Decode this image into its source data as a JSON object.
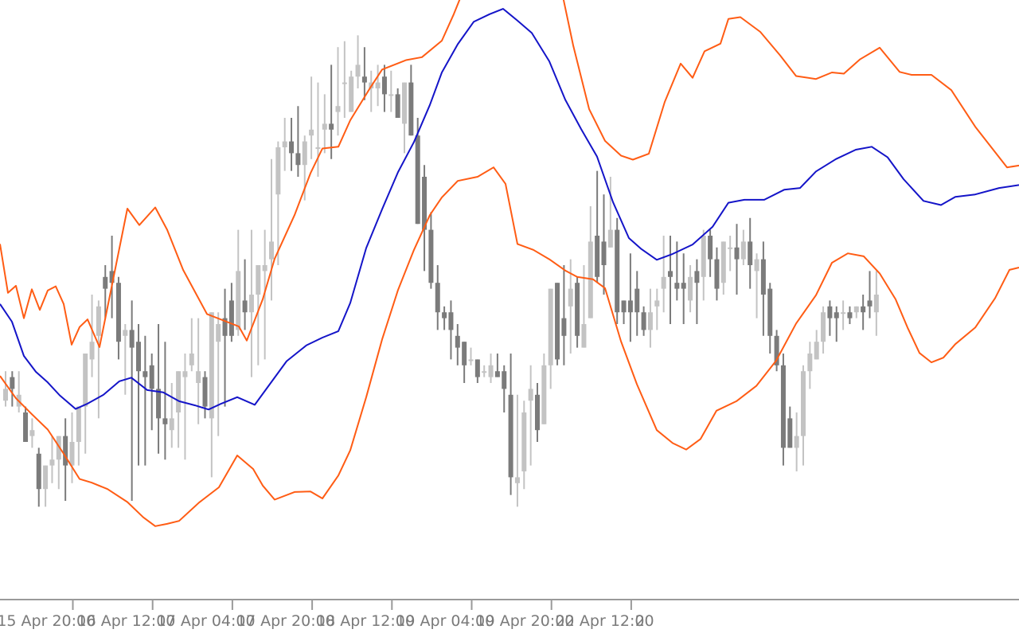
{
  "chart_data": {
    "type": "candlestick",
    "title": "",
    "xlabel": "",
    "ylabel": "",
    "ylim": [
      0,
      100
    ],
    "grid": false,
    "legend": "none",
    "x_ticks": [
      {
        "label": "15 Apr 20:00",
        "index": -2
      },
      {
        "label": "16 Apr 12:00",
        "index": 10
      },
      {
        "label": "17 Apr 04:00",
        "index": 22
      },
      {
        "label": "17 Apr 20:00",
        "index": 34
      },
      {
        "label": "18 Apr 12:00",
        "index": 46
      },
      {
        "label": "19 Apr 04:00",
        "index": 58
      },
      {
        "label": "19 Apr 20:00",
        "index": 70
      },
      {
        "label": "22 Apr 12:00",
        "index": 82
      },
      {
        "label": "2",
        "index": 94
      }
    ],
    "candles": [
      [
        32,
        34,
        37,
        31
      ],
      [
        36,
        34,
        37,
        31
      ],
      [
        31,
        33,
        37,
        30
      ],
      [
        30,
        25,
        31,
        25
      ],
      [
        26,
        27,
        29,
        24
      ],
      [
        23,
        17,
        24,
        14
      ],
      [
        17,
        21,
        21,
        14
      ],
      [
        21,
        22,
        26,
        18
      ],
      [
        22,
        26,
        26,
        17
      ],
      [
        26,
        21,
        29,
        15
      ],
      [
        21,
        25,
        30,
        18
      ],
      [
        25,
        31,
        31,
        21
      ],
      [
        31,
        40,
        40,
        23
      ],
      [
        39,
        42,
        50,
        36
      ],
      [
        43,
        48,
        49,
        29
      ],
      [
        53,
        51,
        55,
        46
      ],
      [
        54,
        52,
        60,
        46
      ],
      [
        52,
        42,
        53,
        39
      ],
      [
        43,
        44,
        45,
        33
      ],
      [
        44,
        41,
        49,
        15
      ],
      [
        42,
        37,
        45,
        21
      ],
      [
        37,
        36,
        43,
        21
      ],
      [
        38,
        34,
        40,
        27
      ],
      [
        34,
        29,
        45,
        23
      ],
      [
        29,
        28,
        42,
        22
      ],
      [
        27,
        29,
        35,
        24
      ],
      [
        30,
        37,
        37,
        24
      ],
      [
        36,
        37,
        40,
        22
      ],
      [
        38,
        40,
        46,
        37
      ],
      [
        35,
        37,
        46,
        28
      ],
      [
        36,
        31,
        37,
        29
      ],
      [
        29,
        47,
        47,
        19
      ],
      [
        42,
        45,
        47,
        26
      ],
      [
        46,
        43,
        51,
        31
      ],
      [
        49,
        43,
        52,
        42
      ],
      [
        44,
        54,
        61,
        43
      ],
      [
        49,
        47,
        56,
        44
      ],
      [
        47,
        50,
        61,
        36
      ],
      [
        50,
        55,
        55,
        38
      ],
      [
        54,
        55,
        61,
        39
      ],
      [
        56,
        59,
        73,
        49
      ],
      [
        67,
        75,
        76,
        55
      ],
      [
        75,
        76,
        80,
        71
      ],
      [
        76,
        74,
        80,
        71
      ],
      [
        74,
        72,
        82,
        70
      ],
      [
        72,
        76,
        77,
        66
      ],
      [
        77,
        78,
        87,
        73
      ],
      [
        75,
        75,
        86,
        70
      ],
      [
        78,
        79,
        84,
        74
      ],
      [
        79,
        78,
        89,
        73
      ],
      [
        81,
        82,
        92,
        77
      ],
      [
        86,
        86,
        93,
        80
      ],
      [
        81,
        87,
        88,
        81
      ],
      [
        87,
        89,
        94,
        85
      ],
      [
        87,
        86,
        92,
        83
      ],
      [
        85,
        86,
        88,
        81
      ],
      [
        85,
        86,
        89,
        82
      ],
      [
        87,
        84,
        89,
        81
      ],
      [
        84,
        84,
        88,
        81
      ],
      [
        84,
        80,
        85,
        82
      ],
      [
        79,
        86,
        85,
        74
      ],
      [
        86,
        77,
        89,
        79
      ],
      [
        77,
        62,
        80,
        63
      ],
      [
        70,
        61,
        72,
        54
      ],
      [
        61,
        52,
        64,
        51
      ],
      [
        52,
        47,
        55,
        44
      ],
      [
        47,
        46,
        48,
        44
      ],
      [
        47,
        44,
        49,
        39
      ],
      [
        43,
        41,
        45,
        38
      ],
      [
        42,
        38,
        42,
        35
      ],
      [
        39,
        39,
        41,
        38
      ],
      [
        39,
        36,
        39,
        35
      ],
      [
        37,
        37,
        38,
        36
      ],
      [
        36,
        38,
        40,
        35
      ],
      [
        37,
        36,
        40,
        36
      ],
      [
        37,
        34,
        38,
        30
      ],
      [
        33,
        19,
        40,
        16
      ],
      [
        18,
        19,
        33,
        14
      ],
      [
        20,
        30,
        32,
        17
      ],
      [
        32,
        34,
        38,
        21
      ],
      [
        33,
        27,
        35,
        25
      ],
      [
        28,
        38,
        40,
        32
      ],
      [
        38,
        51,
        51,
        34
      ],
      [
        52,
        39,
        52,
        38
      ],
      [
        46,
        43,
        55,
        38
      ],
      [
        48,
        51,
        56,
        40
      ],
      [
        52,
        43,
        53,
        41
      ],
      [
        41,
        45,
        55,
        41
      ],
      [
        46,
        59,
        65,
        46
      ],
      [
        60,
        53,
        71,
        52
      ],
      [
        59,
        55,
        67,
        50
      ],
      [
        58,
        61,
        70,
        60
      ],
      [
        61,
        47,
        63,
        45
      ],
      [
        49,
        47,
        49,
        45
      ],
      [
        49,
        47,
        57,
        42
      ],
      [
        51,
        47,
        54,
        43
      ],
      [
        47,
        44,
        48,
        43
      ],
      [
        44,
        47,
        51,
        41
      ],
      [
        48,
        49,
        51,
        44
      ],
      [
        51,
        53,
        60,
        47
      ],
      [
        54,
        53,
        60,
        45
      ],
      [
        52,
        51,
        59,
        49
      ],
      [
        52,
        51,
        57,
        45
      ],
      [
        49,
        53,
        55,
        47
      ],
      [
        54,
        52,
        56,
        45
      ],
      [
        53,
        60,
        61,
        49
      ],
      [
        60,
        56,
        61,
        53
      ],
      [
        56,
        51,
        58,
        49
      ],
      [
        52,
        59,
        59,
        50
      ],
      [
        58,
        58,
        60,
        54
      ],
      [
        58,
        56,
        62,
        50
      ],
      [
        56,
        59,
        61,
        55
      ],
      [
        59,
        55,
        63,
        51
      ],
      [
        54,
        56,
        57,
        46
      ],
      [
        56,
        50,
        59,
        43
      ],
      [
        51,
        43,
        52,
        40
      ],
      [
        43,
        38,
        44,
        37
      ],
      [
        38,
        24,
        40,
        21
      ],
      [
        29,
        24,
        31,
        26
      ],
      [
        24,
        26,
        30,
        20
      ],
      [
        26,
        37,
        38,
        21
      ],
      [
        37,
        40,
        42,
        34
      ],
      [
        39,
        42,
        44,
        39
      ],
      [
        42,
        47,
        48,
        40
      ],
      [
        48,
        46,
        49,
        43
      ],
      [
        47,
        46,
        48,
        42
      ],
      [
        47,
        47,
        49,
        44
      ],
      [
        47,
        46,
        48,
        45
      ],
      [
        47,
        48,
        48,
        46
      ],
      [
        48,
        47,
        50,
        44
      ],
      [
        49,
        48,
        54,
        46
      ],
      [
        47,
        50,
        54,
        43
      ]
    ],
    "bands": {
      "upper": [
        [
          0,
          58.6
        ],
        [
          10,
          50.3
        ],
        [
          20,
          51.5
        ],
        [
          30,
          46.0
        ],
        [
          40,
          50.9
        ],
        [
          50,
          47.4
        ],
        [
          60,
          50.7
        ],
        [
          70,
          51.4
        ],
        [
          80,
          48.4
        ],
        [
          90,
          41.5
        ],
        [
          100,
          44.5
        ],
        [
          110,
          45.8
        ],
        [
          125,
          41.1
        ],
        [
          160,
          64.6
        ],
        [
          175,
          61.8
        ],
        [
          195,
          64.8
        ],
        [
          210,
          61.0
        ],
        [
          230,
          54.2
        ],
        [
          260,
          46.7
        ],
        [
          300,
          44.6
        ],
        [
          310,
          42.2
        ],
        [
          330,
          49.2
        ],
        [
          345,
          56.1
        ],
        [
          370,
          63.5
        ],
        [
          390,
          70.6
        ],
        [
          405,
          74.8
        ],
        [
          425,
          75.1
        ],
        [
          440,
          79.6
        ],
        [
          465,
          85.1
        ],
        [
          480,
          88.2
        ],
        [
          495,
          89.0
        ],
        [
          510,
          89.8
        ],
        [
          530,
          90.3
        ],
        [
          555,
          93.1
        ],
        [
          570,
          97.6
        ],
        [
          590,
          104.3
        ],
        [
          600,
          107.9
        ],
        [
          625,
          112.5
        ],
        [
          640,
          115.8
        ],
        [
          655,
          117.6
        ],
        [
          670,
          116.1
        ],
        [
          700,
          105.1
        ],
        [
          720,
          92.3
        ],
        [
          740,
          81.5
        ],
        [
          760,
          76.1
        ],
        [
          780,
          73.6
        ],
        [
          795,
          72.9
        ],
        [
          815,
          73.9
        ],
        [
          835,
          82.7
        ],
        [
          855,
          89.2
        ],
        [
          870,
          86.8
        ],
        [
          885,
          91.3
        ],
        [
          905,
          92.6
        ],
        [
          915,
          96.8
        ],
        [
          930,
          97.1
        ],
        [
          955,
          94.6
        ],
        [
          980,
          90.6
        ],
        [
          1000,
          87.1
        ],
        [
          1025,
          86.6
        ],
        [
          1045,
          87.7
        ],
        [
          1060,
          87.5
        ],
        [
          1080,
          89.9
        ],
        [
          1105,
          91.9
        ],
        [
          1130,
          87.8
        ],
        [
          1145,
          87.3
        ],
        [
          1170,
          87.3
        ],
        [
          1195,
          84.7
        ],
        [
          1225,
          78.5
        ],
        [
          1265,
          71.6
        ],
        [
          1280,
          71.9
        ]
      ],
      "middle": [
        [
          0,
          48.4
        ],
        [
          15,
          45.4
        ],
        [
          30,
          39.6
        ],
        [
          45,
          36.9
        ],
        [
          60,
          35.1
        ],
        [
          75,
          32.9
        ],
        [
          95,
          30.6
        ],
        [
          110,
          31.5
        ],
        [
          130,
          33.0
        ],
        [
          150,
          35.3
        ],
        [
          165,
          35.9
        ],
        [
          185,
          33.8
        ],
        [
          205,
          33.4
        ],
        [
          225,
          31.9
        ],
        [
          245,
          31.2
        ],
        [
          262,
          30.5
        ],
        [
          278,
          31.5
        ],
        [
          298,
          32.6
        ],
        [
          320,
          31.3
        ],
        [
          340,
          35.0
        ],
        [
          360,
          38.7
        ],
        [
          385,
          41.4
        ],
        [
          405,
          42.7
        ],
        [
          425,
          43.8
        ],
        [
          440,
          48.6
        ],
        [
          460,
          57.9
        ],
        [
          480,
          64.5
        ],
        [
          500,
          70.8
        ],
        [
          520,
          75.9
        ],
        [
          540,
          82.2
        ],
        [
          555,
          87.7
        ],
        [
          575,
          92.5
        ],
        [
          595,
          96.3
        ],
        [
          615,
          97.6
        ],
        [
          632,
          98.5
        ],
        [
          650,
          96.5
        ],
        [
          668,
          94.4
        ],
        [
          690,
          89.6
        ],
        [
          710,
          83.1
        ],
        [
          730,
          78.1
        ],
        [
          750,
          73.4
        ],
        [
          770,
          65.7
        ],
        [
          790,
          59.6
        ],
        [
          805,
          57.8
        ],
        [
          825,
          55.9
        ],
        [
          845,
          56.9
        ],
        [
          870,
          58.5
        ],
        [
          895,
          61.5
        ],
        [
          915,
          65.6
        ],
        [
          935,
          66.1
        ],
        [
          960,
          66.1
        ],
        [
          985,
          67.8
        ],
        [
          1005,
          68.1
        ],
        [
          1025,
          70.9
        ],
        [
          1050,
          73.0
        ],
        [
          1075,
          74.6
        ],
        [
          1095,
          75.1
        ],
        [
          1115,
          73.3
        ],
        [
          1135,
          69.6
        ],
        [
          1160,
          65.9
        ],
        [
          1182,
          65.2
        ],
        [
          1200,
          66.6
        ],
        [
          1225,
          67.0
        ],
        [
          1255,
          68.1
        ],
        [
          1280,
          68.6
        ]
      ],
      "lower": [
        [
          0,
          36.2
        ],
        [
          20,
          32.4
        ],
        [
          40,
          29.7
        ],
        [
          60,
          27.1
        ],
        [
          80,
          23.0
        ],
        [
          100,
          18.7
        ],
        [
          115,
          18.1
        ],
        [
          135,
          17.0
        ],
        [
          160,
          14.8
        ],
        [
          180,
          12.2
        ],
        [
          195,
          10.7
        ],
        [
          210,
          11.1
        ],
        [
          225,
          11.6
        ],
        [
          250,
          14.7
        ],
        [
          275,
          17.3
        ],
        [
          298,
          22.7
        ],
        [
          318,
          20.4
        ],
        [
          330,
          17.6
        ],
        [
          345,
          15.2
        ],
        [
          370,
          16.5
        ],
        [
          390,
          16.6
        ],
        [
          405,
          15.4
        ],
        [
          425,
          19.3
        ],
        [
          440,
          23.6
        ],
        [
          460,
          32.6
        ],
        [
          480,
          42.4
        ],
        [
          500,
          50.8
        ],
        [
          520,
          57.6
        ],
        [
          540,
          63.5
        ],
        [
          555,
          66.5
        ],
        [
          575,
          69.3
        ],
        [
          600,
          70.0
        ],
        [
          620,
          71.6
        ],
        [
          635,
          68.8
        ],
        [
          650,
          58.6
        ],
        [
          670,
          57.6
        ],
        [
          690,
          56.0
        ],
        [
          710,
          54.1
        ],
        [
          725,
          53.0
        ],
        [
          745,
          52.6
        ],
        [
          760,
          51.1
        ],
        [
          780,
          42.1
        ],
        [
          800,
          34.8
        ],
        [
          825,
          27.0
        ],
        [
          845,
          24.8
        ],
        [
          862,
          23.7
        ],
        [
          880,
          25.5
        ],
        [
          900,
          30.3
        ],
        [
          925,
          31.9
        ],
        [
          950,
          34.5
        ],
        [
          975,
          38.8
        ],
        [
          1000,
          45.1
        ],
        [
          1025,
          49.9
        ],
        [
          1045,
          55.4
        ],
        [
          1065,
          57.0
        ],
        [
          1085,
          56.5
        ],
        [
          1105,
          53.6
        ],
        [
          1125,
          49.2
        ],
        [
          1140,
          44.4
        ],
        [
          1155,
          40.1
        ],
        [
          1170,
          38.5
        ],
        [
          1185,
          39.3
        ],
        [
          1200,
          41.6
        ],
        [
          1225,
          44.4
        ],
        [
          1250,
          49.4
        ],
        [
          1268,
          54.2
        ],
        [
          1280,
          54.6
        ]
      ]
    },
    "colors": {
      "up_candle": "#c3c3c3",
      "down_candle": "#7b7b7b",
      "middle_band": "#1414c8",
      "outer_bands": "#ff5c14",
      "axis": "#9a9a9a",
      "tick_text": "#7a7a7a"
    }
  }
}
